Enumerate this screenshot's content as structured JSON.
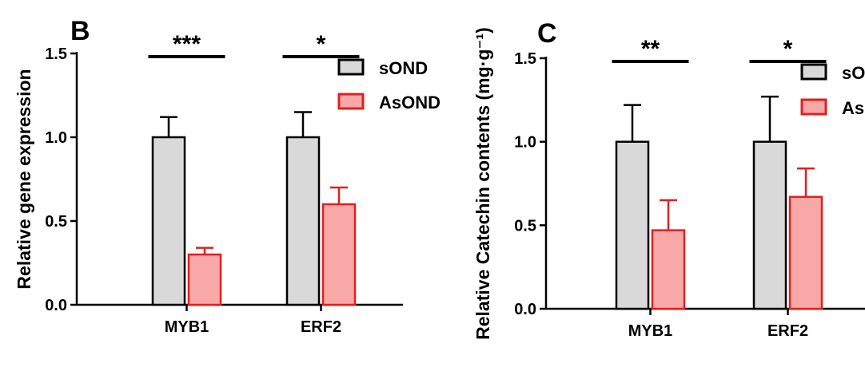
{
  "chart_data": [
    {
      "type": "bar",
      "panel": "B",
      "title": "",
      "ylabel": "Relative gene expression",
      "xlabel": "",
      "ylim": [
        0,
        1.5
      ],
      "yticks": [
        "0.0",
        "0.5",
        "1.0",
        "1.5"
      ],
      "ytick_values": [
        0,
        0.5,
        1.0,
        1.5
      ],
      "categories": [
        "MYB1",
        "ERF2"
      ],
      "series": [
        {
          "name": "sOND",
          "values": [
            1.0,
            1.0
          ],
          "errors": [
            0.12,
            0.15
          ],
          "fill": "#d9d9d9",
          "stroke": "#000000"
        },
        {
          "name": "AsOND",
          "values": [
            0.3,
            0.6
          ],
          "errors": [
            0.04,
            0.1
          ],
          "fill": "#f8a8a6",
          "stroke": "#e02020"
        }
      ],
      "significance": [
        "***",
        "*"
      ],
      "legend": "right"
    },
    {
      "type": "bar",
      "panel": "C",
      "title": "",
      "ylabel": "Relative Catechin contents (mg·g⁻¹)",
      "xlabel": "",
      "ylim": [
        0,
        1.5
      ],
      "yticks": [
        "0.0",
        "0.5",
        "1.0",
        "1.5"
      ],
      "ytick_values": [
        0,
        0.5,
        1.0,
        1.5
      ],
      "categories": [
        "MYB1",
        "ERF2"
      ],
      "series": [
        {
          "name": "sOND",
          "values": [
            1.0,
            1.0
          ],
          "errors": [
            0.22,
            0.27
          ],
          "fill": "#d9d9d9",
          "stroke": "#000000"
        },
        {
          "name": "AsOND",
          "values": [
            0.47,
            0.67
          ],
          "errors": [
            0.18,
            0.17
          ],
          "fill": "#f8a8a6",
          "stroke": "#e02020"
        }
      ],
      "significance": [
        "**",
        "*"
      ],
      "legend": "right"
    }
  ]
}
